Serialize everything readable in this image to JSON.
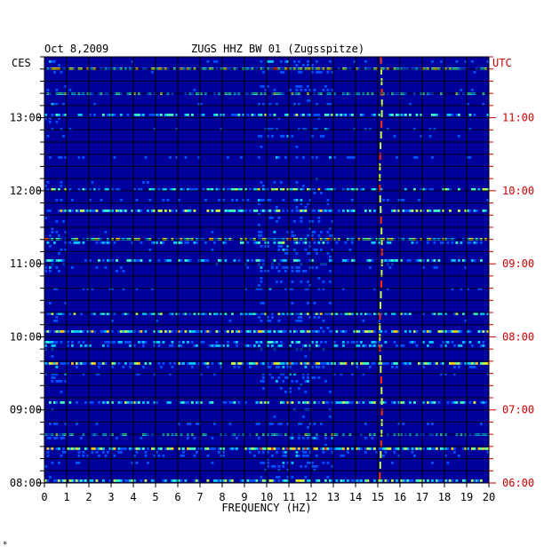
{
  "chart_data": {
    "type": "heatmap",
    "date": "Oct 8,2009",
    "title": "ZUGS HHZ BW 01 (Zugsspitze)",
    "left_timezone": "CES",
    "right_timezone": "UTC",
    "xlabel": "FREQUENCY (HZ)",
    "x_ticks": [
      "0",
      "1",
      "2",
      "3",
      "4",
      "5",
      "6",
      "7",
      "8",
      "9",
      "10",
      "11",
      "12",
      "13",
      "14",
      "15",
      "16",
      "17",
      "18",
      "19",
      "20"
    ],
    "xlim": [
      0,
      20
    ],
    "left_time_ticks": [
      "08:00",
      "09:00",
      "10:00",
      "11:00",
      "12:00",
      "13:00"
    ],
    "right_time_ticks": [
      "06:00",
      "07:00",
      "08:00",
      "09:00",
      "10:00",
      "11:00"
    ],
    "time_range_ces": [
      "08:00",
      "13:50"
    ],
    "footer_mark": "*",
    "colormap": [
      "#00007c",
      "#0000dc",
      "#0050ff",
      "#00c8ff",
      "#40ffc0",
      "#c8ff40",
      "#ffc800",
      "#ff3000",
      "#a00000"
    ],
    "colors": {
      "background": "#00009a",
      "grid": "#000000",
      "left_axis_text": "#000000",
      "right_axis_text": "#cc0000"
    }
  },
  "page": {
    "footer_mark": "*"
  }
}
